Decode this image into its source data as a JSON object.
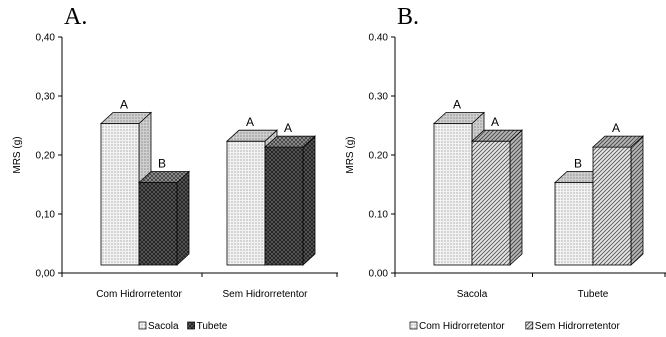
{
  "chart_data": [
    {
      "panel_label": "A.",
      "type": "bar",
      "ylabel": "MRS (g)",
      "ylim": [
        0,
        0.4
      ],
      "yticks": [
        "0,00",
        "0,10",
        "0,20",
        "0,30",
        "0,40"
      ],
      "categories": [
        "Com Hidrorretentor",
        "Sem Hidrorretentor"
      ],
      "series": [
        {
          "name": "Sacola",
          "values": [
            0.25,
            0.22
          ],
          "labels": [
            "A",
            "A"
          ],
          "fill": "#ececec",
          "pattern": "dots-fine"
        },
        {
          "name": "Tubete",
          "values": [
            0.15,
            0.21
          ],
          "labels": [
            "B",
            "A"
          ],
          "fill": "#6e6e6e",
          "pattern": "crosshatch-dark"
        }
      ],
      "legend": "bottom",
      "grid": false
    },
    {
      "panel_label": "B.",
      "type": "bar",
      "ylabel": "MRS (g)",
      "ylim": [
        0,
        0.4
      ],
      "yticks": [
        "0.00",
        "0.10",
        "0.20",
        "0.30",
        "0.40"
      ],
      "categories": [
        "Sacola",
        "Tubete"
      ],
      "series": [
        {
          "name": "Com Hidrorretentor",
          "values": [
            0.25,
            0.15
          ],
          "labels": [
            "A",
            "B"
          ],
          "fill": "#ececec",
          "pattern": "dots-fine"
        },
        {
          "name": "Sem Hidrorretentor",
          "values": [
            0.22,
            0.21
          ],
          "labels": [
            "A",
            "A"
          ],
          "fill": "#bdbdbd",
          "pattern": "diagonal-lines"
        }
      ],
      "legend": "bottom",
      "grid": false
    }
  ]
}
